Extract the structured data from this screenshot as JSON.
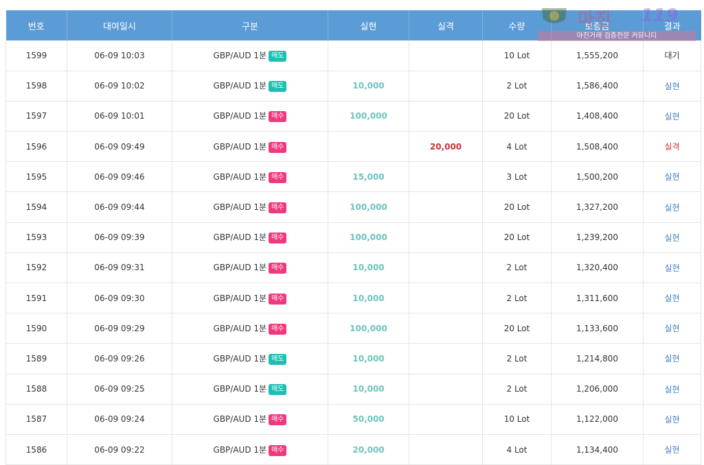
{
  "headers": [
    "번호",
    "대여일시",
    "구분",
    "실현",
    "실격",
    "수량",
    "보증금",
    "결과"
  ],
  "rows": [
    {
      "no": "1599",
      "time": "06-09 10:03",
      "pair": "GBP/AUD 1분",
      "side": "매도",
      "side_type": "sell",
      "profit": "",
      "loss": "",
      "qty": "10 Lot",
      "deposit": "1,555,200",
      "result": "대기",
      "result_type": "wait"
    },
    {
      "no": "1598",
      "time": "06-09 10:02",
      "pair": "GBP/AUD 1분",
      "side": "매도",
      "side_type": "sell",
      "profit": "10,000",
      "loss": "",
      "qty": "2 Lot",
      "deposit": "1,586,400",
      "result": "실현",
      "result_type": "win"
    },
    {
      "no": "1597",
      "time": "06-09 10:01",
      "pair": "GBP/AUD 1분",
      "side": "매수",
      "side_type": "buy",
      "profit": "100,000",
      "loss": "",
      "qty": "20 Lot",
      "deposit": "1,408,400",
      "result": "실현",
      "result_type": "win"
    },
    {
      "no": "1596",
      "time": "06-09 09:49",
      "pair": "GBP/AUD 1분",
      "side": "매수",
      "side_type": "buy",
      "profit": "",
      "loss": "20,000",
      "qty": "4 Lot",
      "deposit": "1,508,400",
      "result": "실격",
      "result_type": "loss"
    },
    {
      "no": "1595",
      "time": "06-09 09:46",
      "pair": "GBP/AUD 1분",
      "side": "매수",
      "side_type": "buy",
      "profit": "15,000",
      "loss": "",
      "qty": "3 Lot",
      "deposit": "1,500,200",
      "result": "실현",
      "result_type": "win"
    },
    {
      "no": "1594",
      "time": "06-09 09:44",
      "pair": "GBP/AUD 1분",
      "side": "매수",
      "side_type": "buy",
      "profit": "100,000",
      "loss": "",
      "qty": "20 Lot",
      "deposit": "1,327,200",
      "result": "실현",
      "result_type": "win"
    },
    {
      "no": "1593",
      "time": "06-09 09:39",
      "pair": "GBP/AUD 1분",
      "side": "매수",
      "side_type": "buy",
      "profit": "100,000",
      "loss": "",
      "qty": "20 Lot",
      "deposit": "1,239,200",
      "result": "실현",
      "result_type": "win"
    },
    {
      "no": "1592",
      "time": "06-09 09:31",
      "pair": "GBP/AUD 1분",
      "side": "매수",
      "side_type": "buy",
      "profit": "10,000",
      "loss": "",
      "qty": "2 Lot",
      "deposit": "1,320,400",
      "result": "실현",
      "result_type": "win"
    },
    {
      "no": "1591",
      "time": "06-09 09:30",
      "pair": "GBP/AUD 1분",
      "side": "매수",
      "side_type": "buy",
      "profit": "10,000",
      "loss": "",
      "qty": "2 Lot",
      "deposit": "1,311,600",
      "result": "실현",
      "result_type": "win"
    },
    {
      "no": "1590",
      "time": "06-09 09:29",
      "pair": "GBP/AUD 1분",
      "side": "매수",
      "side_type": "buy",
      "profit": "100,000",
      "loss": "",
      "qty": "20 Lot",
      "deposit": "1,133,600",
      "result": "실현",
      "result_type": "win"
    },
    {
      "no": "1589",
      "time": "06-09 09:26",
      "pair": "GBP/AUD 1분",
      "side": "매도",
      "side_type": "sell",
      "profit": "10,000",
      "loss": "",
      "qty": "2 Lot",
      "deposit": "1,214,800",
      "result": "실현",
      "result_type": "win"
    },
    {
      "no": "1588",
      "time": "06-09 09:25",
      "pair": "GBP/AUD 1분",
      "side": "매도",
      "side_type": "sell",
      "profit": "10,000",
      "loss": "",
      "qty": "2 Lot",
      "deposit": "1,206,000",
      "result": "실현",
      "result_type": "win"
    },
    {
      "no": "1587",
      "time": "06-09 09:24",
      "pair": "GBP/AUD 1분",
      "side": "매수",
      "side_type": "buy",
      "profit": "50,000",
      "loss": "",
      "qty": "10 Lot",
      "deposit": "1,122,000",
      "result": "실현",
      "result_type": "win"
    },
    {
      "no": "1586",
      "time": "06-09 09:22",
      "pair": "GBP/AUD 1분",
      "side": "매수",
      "side_type": "buy",
      "profit": "20,000",
      "loss": "",
      "qty": "4 Lot",
      "deposit": "1,134,400",
      "result": "실현",
      "result_type": "win"
    }
  ],
  "watermark": {
    "title": "마진",
    "number": "119",
    "banner": "마진거래 검증전문 커뮤니티",
    "emblem": "shield-emblem-icon"
  },
  "colors": {
    "header_bg": "#5b9bd6",
    "profit": "#6cc3bd",
    "loss": "#c8323a",
    "sell_badge": "#1cc0b2",
    "buy_badge": "#f0387e",
    "result_win": "#3d7ec2"
  }
}
